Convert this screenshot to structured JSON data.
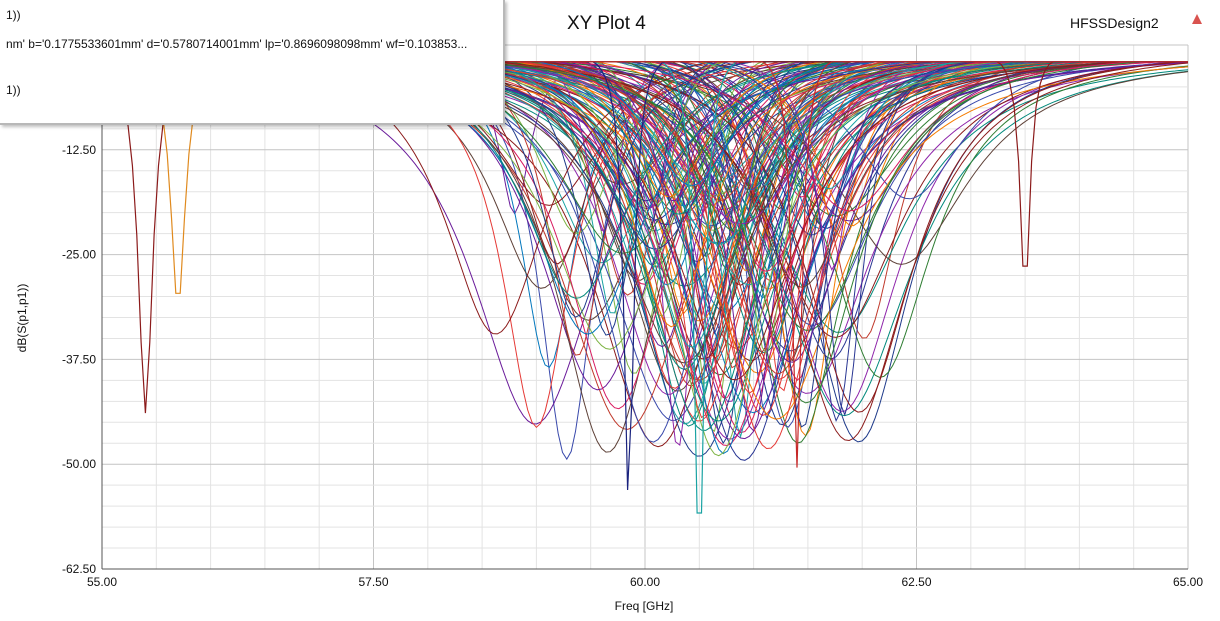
{
  "chart_data": {
    "type": "line",
    "title": "XY Plot 4",
    "design_name": "HFSSDesign2",
    "xlabel": "Freq [GHz]",
    "ylabel": "dB(S(p1,p1))",
    "xlim": [
      55.0,
      65.0
    ],
    "ylim": [
      -62.5,
      0.0
    ],
    "x_ticks": [
      "55.00",
      "57.50",
      "60.00",
      "62.50",
      "65.00"
    ],
    "y_ticks": [
      "-12.50",
      "-25.00",
      "-37.50",
      "-50.00",
      "-62.50"
    ],
    "grid": true,
    "legend_rows": [
      "1))",
      "nm' b='0.1775533601mm' d='0.5780714001mm' lp='0.8696098098mm' wf='0.103853...",
      "1))"
    ],
    "series_count": 180,
    "notable_series": [
      {
        "color": "#8b1a1a",
        "resonance_ghz": 55.4,
        "min_db": -42.5
      },
      {
        "color": "#e08a1e",
        "resonance_ghz": 55.7,
        "min_db": -30.0
      },
      {
        "color": "#1aa3a3",
        "resonance_ghz": 60.5,
        "min_db": -62.0
      },
      {
        "color": "#1a237e",
        "resonance_ghz": 59.85,
        "min_db": -53.5
      },
      {
        "color": "#8b1a1a",
        "resonance_ghz": 63.5,
        "min_db": -28.5
      },
      {
        "color": "#c62828",
        "resonance_ghz": 61.4,
        "min_db": -49.0
      }
    ],
    "palette": [
      "#e53935",
      "#1e3a8a",
      "#1aa3a3",
      "#2e7d32",
      "#8e24aa",
      "#c0392b",
      "#f57c00",
      "#00897b",
      "#5d4037",
      "#283593",
      "#d81b60",
      "#7cb342",
      "#3949ab",
      "#8b1a1a",
      "#6a1b9a",
      "#0277bd"
    ]
  }
}
